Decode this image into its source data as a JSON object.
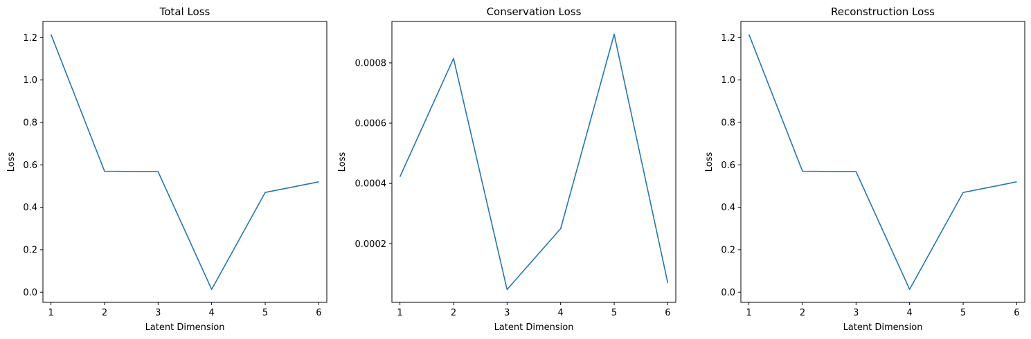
{
  "chart_data": [
    {
      "type": "line",
      "title": "Total Loss",
      "xlabel": "Latent Dimension",
      "ylabel": "Loss",
      "x": [
        1,
        2,
        3,
        4,
        5,
        6
      ],
      "series": [
        {
          "values": [
            1.215,
            0.57,
            0.568,
            0.013,
            0.47,
            0.52
          ]
        }
      ],
      "xlim": [
        0.85,
        6.15
      ],
      "ylim": [
        -0.048,
        1.276
      ],
      "xticks": [
        "1",
        "2",
        "3",
        "4",
        "5",
        "6"
      ],
      "yticks": [
        0.0,
        0.2,
        0.4,
        0.6,
        0.8,
        1.0,
        1.2
      ],
      "ytick_labels": [
        "0.0",
        "0.2",
        "0.4",
        "0.6",
        "0.8",
        "1.0",
        "1.2"
      ],
      "grid": false
    },
    {
      "type": "line",
      "title": "Conservation Loss",
      "xlabel": "Latent Dimension",
      "ylabel": "Loss",
      "x": [
        1,
        2,
        3,
        4,
        5,
        6
      ],
      "series": [
        {
          "values": [
            0.000422,
            0.000815,
            4.8e-05,
            0.00025,
            0.000895,
            7e-05
          ]
        }
      ],
      "xlim": [
        0.85,
        6.15
      ],
      "ylim": [
        5.5e-06,
        0.0009375
      ],
      "xticks": [
        "1",
        "2",
        "3",
        "4",
        "5",
        "6"
      ],
      "yticks": [
        0.0002,
        0.0004,
        0.0006,
        0.0008
      ],
      "ytick_labels": [
        "0.0002",
        "0.0004",
        "0.0006",
        "0.0008"
      ],
      "grid": false
    },
    {
      "type": "line",
      "title": "Reconstruction Loss",
      "xlabel": "Latent Dimension",
      "ylabel": "Loss",
      "x": [
        1,
        2,
        3,
        4,
        5,
        6
      ],
      "series": [
        {
          "values": [
            1.215,
            0.57,
            0.568,
            0.013,
            0.47,
            0.52
          ]
        }
      ],
      "xlim": [
        0.85,
        6.15
      ],
      "ylim": [
        -0.048,
        1.276
      ],
      "xticks": [
        "1",
        "2",
        "3",
        "4",
        "5",
        "6"
      ],
      "yticks": [
        0.0,
        0.2,
        0.4,
        0.6,
        0.8,
        1.0,
        1.2
      ],
      "ytick_labels": [
        "0.0",
        "0.2",
        "0.4",
        "0.6",
        "0.8",
        "1.0",
        "1.2"
      ],
      "grid": false
    }
  ],
  "style": {
    "line_color": "#1f77b4"
  }
}
